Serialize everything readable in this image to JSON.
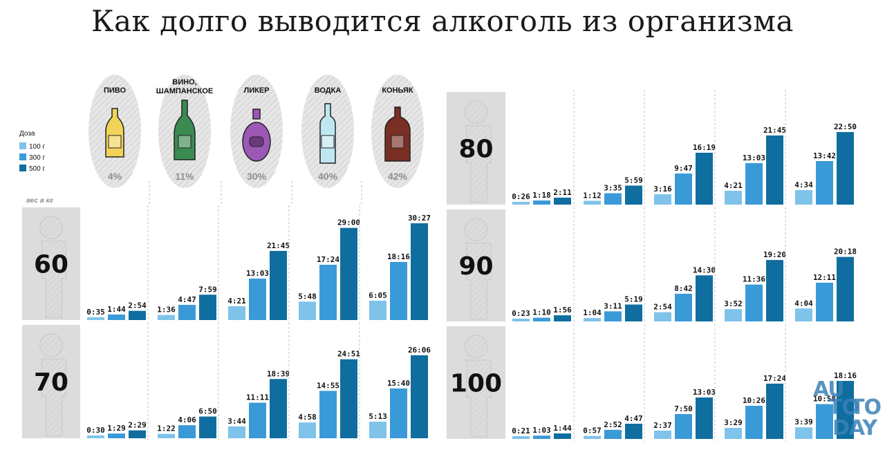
{
  "title": "Как долго выводится алкоголь из организма",
  "legend": {
    "title": "Доза",
    "items": [
      "100 г",
      "300 г",
      "500 г"
    ]
  },
  "weight_caption": "вес в кг",
  "colors": {
    "dose_100": "#7fc3ea",
    "dose_300": "#3a9ad8",
    "dose_500": "#0f6e9f",
    "person_bg": "#dcdcdc",
    "oval_bg": "#e6e6e6"
  },
  "drinks": [
    {
      "name_lines": [
        "ПИВО"
      ],
      "strength": "4%",
      "icon": "beer-bottle-icon",
      "color": "#f2d35a"
    },
    {
      "name_lines": [
        "ВИНО,",
        "ШАМПАНСКОЕ"
      ],
      "strength": "11%",
      "icon": "champagne-bottle-icon",
      "color": "#3a8a52"
    },
    {
      "name_lines": [
        "ЛИКЕР"
      ],
      "strength": "30%",
      "icon": "liqueur-bottle-icon",
      "color": "#9b58b5"
    },
    {
      "name_lines": [
        "ВОДКА"
      ],
      "strength": "40%",
      "icon": "vodka-bottle-icon",
      "color": "#bfe7f0"
    },
    {
      "name_lines": [
        "КОНЬЯК"
      ],
      "strength": "42%",
      "icon": "cognac-bottle-icon",
      "color": "#7a2f25"
    }
  ],
  "chart_data": {
    "type": "bar",
    "title": "Как долго выводится алкоголь из организма",
    "unit": "часы:минуты",
    "doses": [
      "100 г",
      "300 г",
      "500 г"
    ],
    "categories": [
      "ПИВО",
      "ВИНО, ШАМПАНСКОЕ",
      "ЛИКЕР",
      "ВОДКА",
      "КОНЬЯК"
    ],
    "weights": [
      {
        "weight": "60",
        "values": [
          [
            "0:35",
            "1:44",
            "2:54"
          ],
          [
            "1:36",
            "4:47",
            "7:59"
          ],
          [
            "4:21",
            "13:03",
            "21:45"
          ],
          [
            "5:48",
            "17:24",
            "29:00"
          ],
          [
            "6:05",
            "18:16",
            "30:27"
          ]
        ]
      },
      {
        "weight": "70",
        "values": [
          [
            "0:30",
            "1:29",
            "2:29"
          ],
          [
            "1:22",
            "4:06",
            "6:50"
          ],
          [
            "3:44",
            "11:11",
            "18:39"
          ],
          [
            "4:58",
            "14:55",
            "24:51"
          ],
          [
            "5:13",
            "15:40",
            "26:06"
          ]
        ]
      },
      {
        "weight": "80",
        "values": [
          [
            "0:26",
            "1:18",
            "2:11"
          ],
          [
            "1:12",
            "3:35",
            "5:59"
          ],
          [
            "3:16",
            "9:47",
            "16:19"
          ],
          [
            "4:21",
            "13:03",
            "21:45"
          ],
          [
            "4:34",
            "13:42",
            "22:50"
          ]
        ]
      },
      {
        "weight": "90",
        "values": [
          [
            "0:23",
            "1:10",
            "1:56"
          ],
          [
            "1:04",
            "3:11",
            "5:19"
          ],
          [
            "2:54",
            "8:42",
            "14:30"
          ],
          [
            "3:52",
            "11:36",
            "19:20"
          ],
          [
            "4:04",
            "12:11",
            "20:18"
          ]
        ]
      },
      {
        "weight": "100",
        "values": [
          [
            "0:21",
            "1:03",
            "1:44"
          ],
          [
            "0:57",
            "2:52",
            "4:47"
          ],
          [
            "2:37",
            "7:50",
            "13:03"
          ],
          [
            "3:29",
            "10:26",
            "17:24"
          ],
          [
            "3:39",
            "10:58",
            "18:16"
          ]
        ]
      }
    ]
  },
  "watermark": {
    "line1": "AU",
    "line2": "TO",
    "line3": "TO",
    "line4": "DAY"
  }
}
